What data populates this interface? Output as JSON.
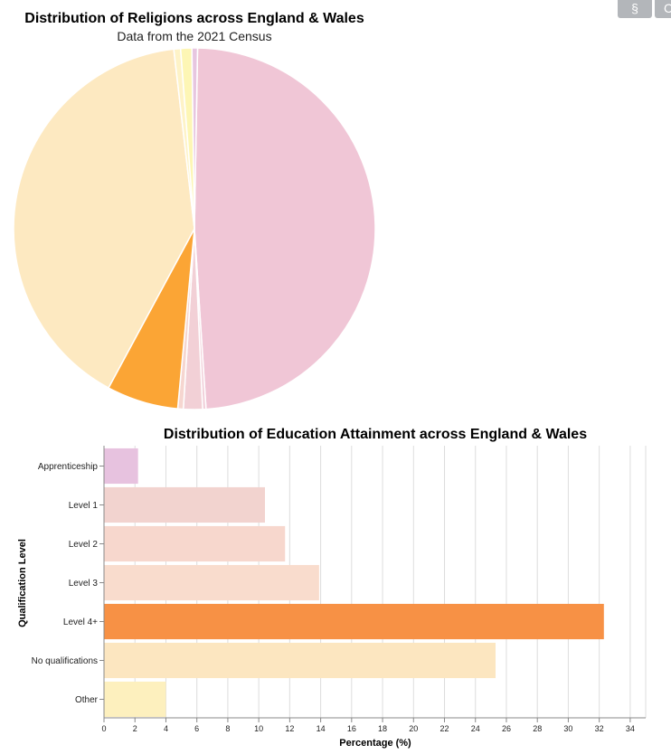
{
  "buttons": [
    {
      "label": "§"
    },
    {
      "label": "C"
    }
  ],
  "chart_data": [
    {
      "type": "pie",
      "title": "Distribution of Religions across England & Wales",
      "subtitle": "Data from the 2021 Census",
      "start_angle_deg": 1,
      "slices": [
        {
          "value": 48.7,
          "color": "#f0c6d6"
        },
        {
          "value": 0.3,
          "color": "#f1cfd9"
        },
        {
          "value": 1.7,
          "color": "#f2d0d6"
        },
        {
          "value": 0.5,
          "color": "#f6d6d0"
        },
        {
          "value": 6.4,
          "color": "#fba535"
        },
        {
          "value": 40.3,
          "color": "#fde9c1"
        },
        {
          "value": 0.6,
          "color": "#fef3c7"
        },
        {
          "value": 1.0,
          "color": "#fdf6b5"
        },
        {
          "value": 0.5,
          "color": "#e7c6e0"
        }
      ]
    },
    {
      "type": "bar",
      "orientation": "horizontal",
      "title": "Distribution of Education Attainment across England & Wales",
      "xlabel": "Percentage (%)",
      "ylabel": "Qualification Level",
      "xlim": [
        0,
        35
      ],
      "xticks": [
        0,
        2,
        4,
        6,
        8,
        10,
        12,
        14,
        16,
        18,
        20,
        22,
        24,
        26,
        28,
        30,
        32,
        34
      ],
      "grid": true,
      "categories": [
        "Apprenticeship",
        "Level 1",
        "Level 2",
        "Level 3",
        "Level 4+",
        "No qualifications",
        "Other"
      ],
      "values": [
        2.2,
        10.4,
        11.7,
        13.9,
        32.3,
        25.3,
        4.0
      ],
      "colors": [
        "#e7c2df",
        "#f2d3cf",
        "#f7d7cd",
        "#f9dccd",
        "#f79145",
        "#fce6c0",
        "#fdf0be"
      ]
    }
  ]
}
